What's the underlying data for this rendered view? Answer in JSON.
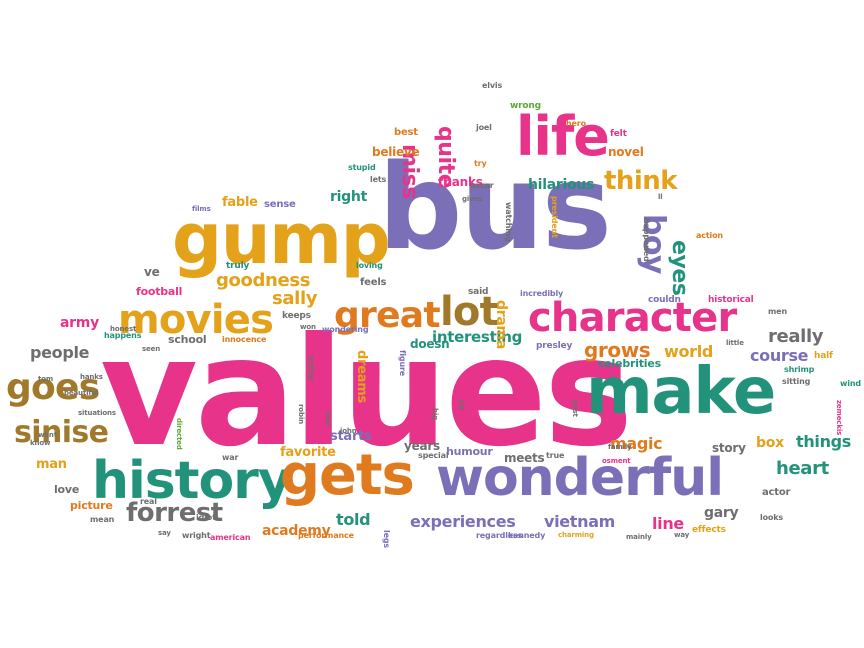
{
  "colors": {
    "pink": "#e8338a",
    "purple": "#7b6fb8",
    "teal": "#22937a",
    "orange": "#e07a1f",
    "gold": "#e3a21a",
    "brown": "#a07a2a",
    "gray": "#6e6e6e",
    "green": "#5aa832"
  },
  "words": [
    {
      "text": "values",
      "color": "pink"
    },
    {
      "text": "bus",
      "color": "purple"
    },
    {
      "text": "gump",
      "color": "gold"
    },
    {
      "text": "make",
      "color": "teal"
    },
    {
      "text": "wonderful",
      "color": "purple"
    },
    {
      "text": "history",
      "color": "teal"
    },
    {
      "text": "gets",
      "color": "orange"
    },
    {
      "text": "life",
      "color": "pink"
    },
    {
      "text": "character",
      "color": "pink"
    },
    {
      "text": "movies",
      "color": "gold"
    },
    {
      "text": "great",
      "color": "orange"
    },
    {
      "text": "lot",
      "color": "brown"
    },
    {
      "text": "goes",
      "color": "brown"
    },
    {
      "text": "sinise",
      "color": "brown"
    },
    {
      "text": "forrest",
      "color": "gray"
    },
    {
      "text": "think",
      "color": "gold"
    },
    {
      "text": "miss",
      "color": "pink"
    },
    {
      "text": "quite",
      "color": "pink"
    },
    {
      "text": "boy",
      "color": "purple"
    },
    {
      "text": "eyes",
      "color": "teal"
    },
    {
      "text": "goodness",
      "color": "gold"
    },
    {
      "text": "sally",
      "color": "gold"
    },
    {
      "text": "grows",
      "color": "orange"
    },
    {
      "text": "world",
      "color": "gold"
    },
    {
      "text": "really",
      "color": "gray"
    },
    {
      "text": "course",
      "color": "purple"
    },
    {
      "text": "people",
      "color": "gray"
    },
    {
      "text": "army",
      "color": "pink"
    },
    {
      "text": "hilarious",
      "color": "teal"
    },
    {
      "text": "novel",
      "color": "orange"
    },
    {
      "text": "thanks",
      "color": "pink"
    },
    {
      "text": "right",
      "color": "teal"
    },
    {
      "text": "fable",
      "color": "gold"
    },
    {
      "text": "believe",
      "color": "orange"
    },
    {
      "text": "interesting",
      "color": "teal"
    },
    {
      "text": "drama",
      "color": "gold"
    },
    {
      "text": "dreams",
      "color": "gold"
    },
    {
      "text": "doesn",
      "color": "teal"
    },
    {
      "text": "magic",
      "color": "orange"
    },
    {
      "text": "heart",
      "color": "teal"
    },
    {
      "text": "things",
      "color": "teal"
    },
    {
      "text": "box",
      "color": "gold"
    },
    {
      "text": "story",
      "color": "gray"
    },
    {
      "text": "gary",
      "color": "gray"
    },
    {
      "text": "line",
      "color": "pink"
    },
    {
      "text": "experiences",
      "color": "purple"
    },
    {
      "text": "vietnam",
      "color": "purple"
    },
    {
      "text": "told",
      "color": "teal"
    },
    {
      "text": "academy",
      "color": "orange"
    },
    {
      "text": "favorite",
      "color": "gold"
    },
    {
      "text": "starts",
      "color": "purple"
    },
    {
      "text": "years",
      "color": "gray"
    },
    {
      "text": "humour",
      "color": "purple"
    },
    {
      "text": "meets",
      "color": "gray"
    },
    {
      "text": "man",
      "color": "gold"
    },
    {
      "text": "love",
      "color": "gray"
    },
    {
      "text": "picture",
      "color": "orange"
    },
    {
      "text": "football",
      "color": "pink"
    },
    {
      "text": "school",
      "color": "gray"
    },
    {
      "text": "ve",
      "color": "gray"
    },
    {
      "text": "celebrities",
      "color": "teal"
    },
    {
      "text": "actor",
      "color": "gray"
    },
    {
      "text": "feels",
      "color": "gray"
    },
    {
      "text": "said",
      "color": "gray"
    },
    {
      "text": "keeps",
      "color": "gray"
    },
    {
      "text": "sense",
      "color": "purple"
    },
    {
      "text": "truly",
      "color": "teal"
    },
    {
      "text": "loving",
      "color": "teal"
    },
    {
      "text": "incredibly",
      "color": "purple"
    },
    {
      "text": "presley",
      "color": "purple"
    },
    {
      "text": "figure",
      "color": "purple"
    },
    {
      "text": "innocence",
      "color": "orange"
    },
    {
      "text": "happens",
      "color": "teal"
    },
    {
      "text": "honest",
      "color": "gray"
    },
    {
      "text": "couldn",
      "color": "purple"
    },
    {
      "text": "historical",
      "color": "pink"
    },
    {
      "text": "men",
      "color": "gray"
    },
    {
      "text": "little",
      "color": "gray"
    },
    {
      "text": "half",
      "color": "gold"
    },
    {
      "text": "shrimp",
      "color": "teal"
    },
    {
      "text": "wind",
      "color": "teal"
    },
    {
      "text": "zemeckis",
      "color": "pink"
    },
    {
      "text": "elvis",
      "color": "gray"
    },
    {
      "text": "wrong",
      "color": "green"
    },
    {
      "text": "hero",
      "color": "orange"
    },
    {
      "text": "felt",
      "color": "pink"
    },
    {
      "text": "best",
      "color": "orange"
    },
    {
      "text": "joel",
      "color": "gray"
    },
    {
      "text": "lets",
      "color": "gray"
    },
    {
      "text": "try",
      "color": "orange"
    },
    {
      "text": "oscar",
      "color": "gray"
    },
    {
      "text": "stupid",
      "color": "teal"
    },
    {
      "text": "gives",
      "color": "gray"
    },
    {
      "text": "ll",
      "color": "gray"
    },
    {
      "text": "films",
      "color": "purple"
    },
    {
      "text": "action",
      "color": "orange"
    },
    {
      "text": "happened",
      "color": "gray"
    },
    {
      "text": "watching",
      "color": "gray"
    },
    {
      "text": "president",
      "color": "gold"
    },
    {
      "text": "wondering",
      "color": "purple"
    },
    {
      "text": "won",
      "color": "gray"
    },
    {
      "text": "author",
      "color": "gray"
    },
    {
      "text": "robin",
      "color": "gray"
    },
    {
      "text": "hold",
      "color": "gray"
    },
    {
      "text": "john",
      "color": "gray"
    },
    {
      "text": "bit",
      "color": "gray"
    },
    {
      "text": "big",
      "color": "gray"
    },
    {
      "text": "past",
      "color": "gray"
    },
    {
      "text": "special",
      "color": "gray"
    },
    {
      "text": "true",
      "color": "gray"
    },
    {
      "text": "family",
      "color": "gray"
    },
    {
      "text": "osment",
      "color": "pink"
    },
    {
      "text": "sitting",
      "color": "gray"
    },
    {
      "text": "looks",
      "color": "gray"
    },
    {
      "text": "effects",
      "color": "gold"
    },
    {
      "text": "way",
      "color": "gray"
    },
    {
      "text": "mainly",
      "color": "gray"
    },
    {
      "text": "charming",
      "color": "gold"
    },
    {
      "text": "kennedy",
      "color": "purple"
    },
    {
      "text": "regardless",
      "color": "purple"
    },
    {
      "text": "legs",
      "color": "purple"
    },
    {
      "text": "performance",
      "color": "orange"
    },
    {
      "text": "american",
      "color": "pink"
    },
    {
      "text": "wright",
      "color": "gray"
    },
    {
      "text": "say",
      "color": "gray"
    },
    {
      "text": "idiot",
      "color": "gray"
    },
    {
      "text": "war",
      "color": "gray"
    },
    {
      "text": "real",
      "color": "gray"
    },
    {
      "text": "mean",
      "color": "gray"
    },
    {
      "text": "know",
      "color": "gray"
    },
    {
      "text": "beautiful",
      "color": "gray"
    },
    {
      "text": "tom",
      "color": "gray"
    },
    {
      "text": "want",
      "color": "gray"
    },
    {
      "text": "hanks",
      "color": "gray"
    },
    {
      "text": "situations",
      "color": "gray"
    },
    {
      "text": "directed",
      "color": "green"
    },
    {
      "text": "seen",
      "color": "gray"
    }
  ]
}
